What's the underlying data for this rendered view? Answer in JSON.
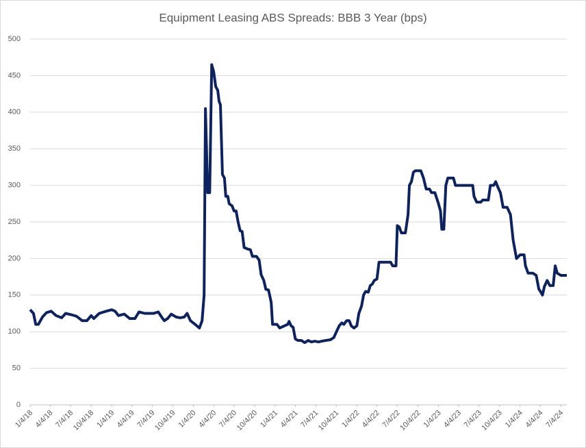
{
  "chart_data": {
    "type": "line",
    "title": "Equipment Leasing ABS Spreads: BBB 3 Year (bps)",
    "x": [
      "1/4/18",
      "1/19/18",
      "1/29/18",
      "2/10/18",
      "2/28/18",
      "3/18/18",
      "4/8/18",
      "4/30/18",
      "5/25/18",
      "6/12/18",
      "7/10/18",
      "7/31/18",
      "8/25/18",
      "9/15/18",
      "10/4/18",
      "10/16/18",
      "11/9/18",
      "12/10/18",
      "1/4/19",
      "1/19/19",
      "2/3/19",
      "3/1/19",
      "3/25/19",
      "4/18/19",
      "5/6/19",
      "5/31/19",
      "7/10/19",
      "7/31/19",
      "8/15/19",
      "8/27/19",
      "9/11/19",
      "9/27/19",
      "10/19/19",
      "11/6/19",
      "11/24/19",
      "12/7/19",
      "12/22/19",
      "1/12/20",
      "1/31/20",
      "2/12/20",
      "2/21/20",
      "2/27/20",
      "3/8/20",
      "3/17/20",
      "3/26/20",
      "4/4/20",
      "4/13/20",
      "4/22/20",
      "4/28/20",
      "5/4/20",
      "5/13/20",
      "5/22/20",
      "5/28/20",
      "6/6/20",
      "6/12/20",
      "6/25/20",
      "7/4/20",
      "7/13/20",
      "7/22/20",
      "7/31/20",
      "8/9/20",
      "8/18/20",
      "9/3/20",
      "9/15/20",
      "9/24/20",
      "10/12/20",
      "10/24/20",
      "11/2/20",
      "11/14/20",
      "11/23/20",
      "12/5/20",
      "12/17/20",
      "12/23/20",
      "1/12/21",
      "1/24/21",
      "2/14/21",
      "3/1/21",
      "3/7/21",
      "3/16/21",
      "3/25/21",
      "4/4/21",
      "4/16/21",
      "5/1/21",
      "5/16/21",
      "5/31/21",
      "6/15/21",
      "6/30/21",
      "7/16/21",
      "7/31/21",
      "8/18/21",
      "9/8/21",
      "9/23/21",
      "10/5/21",
      "10/17/21",
      "10/29/21",
      "11/7/21",
      "11/19/21",
      "12/1/21",
      "12/10/21",
      "12/22/21",
      "1/4/22",
      "1/13/22",
      "1/25/22",
      "2/3/22",
      "2/12/22",
      "2/24/22",
      "3/5/22",
      "3/14/22",
      "3/23/22",
      "4/4/22",
      "4/13/22",
      "5/4/22",
      "6/4/22",
      "6/13/22",
      "6/28/22",
      "7/4/22",
      "7/13/22",
      "7/22/22",
      "8/9/22",
      "8/21/22",
      "8/27/22",
      "9/5/22",
      "9/14/22",
      "9/23/22",
      "10/17/22",
      "10/29/22",
      "11/10/22",
      "11/25/22",
      "12/4/22",
      "12/19/22",
      "1/4/23",
      "1/13/23",
      "1/19/23",
      "1/28/23",
      "2/6/23",
      "2/15/23",
      "3/12/23",
      "3/21/23",
      "5/6/23",
      "6/6/23",
      "6/12/23",
      "6/24/23",
      "7/12/23",
      "7/21/23",
      "8/15/23",
      "8/24/23",
      "9/8/23",
      "9/17/23",
      "9/26/23",
      "10/8/23",
      "10/20/23",
      "11/7/23",
      "11/22/23",
      "12/4/23",
      "12/19/23",
      "1/4/24",
      "1/22/24",
      "1/28/24",
      "2/9/24",
      "3/1/24",
      "3/16/24",
      "3/28/24",
      "4/4/24",
      "4/13/24",
      "4/22/24",
      "5/4/24",
      "5/16/24",
      "5/31/24",
      "6/9/24",
      "6/18/24",
      "7/4/24",
      "7/31/24"
    ],
    "series": [
      {
        "name": "BBB 3 Year",
        "color": "#0d2260",
        "values": [
          130,
          125,
          110,
          110,
          120,
          126,
          128,
          122,
          119,
          125,
          123,
          121,
          115,
          115,
          122,
          118,
          125,
          128,
          130,
          128,
          122,
          124,
          118,
          118,
          127,
          125,
          125,
          127,
          120,
          115,
          118,
          124,
          120,
          119,
          120,
          125,
          115,
          110,
          105,
          115,
          150,
          405,
          290,
          290,
          465,
          455,
          435,
          430,
          415,
          410,
          315,
          310,
          285,
          285,
          275,
          272,
          265,
          265,
          250,
          238,
          237,
          215,
          213,
          212,
          203,
          203,
          198,
          178,
          170,
          158,
          157,
          140,
          110,
          110,
          105,
          108,
          110,
          114,
          108,
          106,
          90,
          88,
          88,
          85,
          88,
          86,
          87,
          86,
          87,
          88,
          89,
          92,
          100,
          108,
          112,
          110,
          115,
          115,
          108,
          105,
          108,
          125,
          135,
          150,
          155,
          154,
          163,
          165,
          170,
          172,
          195,
          195,
          195,
          190,
          190,
          245,
          243,
          235,
          235,
          260,
          300,
          305,
          318,
          320,
          320,
          310,
          295,
          295,
          290,
          290,
          275,
          265,
          240,
          240,
          300,
          310,
          310,
          300,
          300,
          300,
          285,
          277,
          277,
          280,
          280,
          300,
          300,
          305,
          298,
          290,
          270,
          270,
          260,
          225,
          200,
          205,
          205,
          190,
          180,
          180,
          177,
          158,
          155,
          150,
          162,
          170,
          163,
          163,
          190,
          180,
          177,
          177
        ]
      }
    ],
    "xlim": [
      "1/4/18",
      "7/31/24"
    ],
    "xticks": [
      "1/4/18",
      "4/4/18",
      "7/4/18",
      "10/4/18",
      "1/4/19",
      "4/4/19",
      "7/4/19",
      "10/4/19",
      "1/4/20",
      "4/4/20",
      "7/4/20",
      "10/4/20",
      "1/4/21",
      "4/4/21",
      "7/4/21",
      "10/4/21",
      "1/4/22",
      "4/4/22",
      "7/4/22",
      "10/4/22",
      "1/4/23",
      "4/4/23",
      "7/4/23",
      "10/4/23",
      "1/4/24",
      "4/4/24",
      "7/4/24"
    ],
    "ylim": [
      0,
      500
    ],
    "yticks": [
      0,
      50,
      100,
      150,
      200,
      250,
      300,
      350,
      400,
      450,
      500
    ],
    "grid": true
  }
}
